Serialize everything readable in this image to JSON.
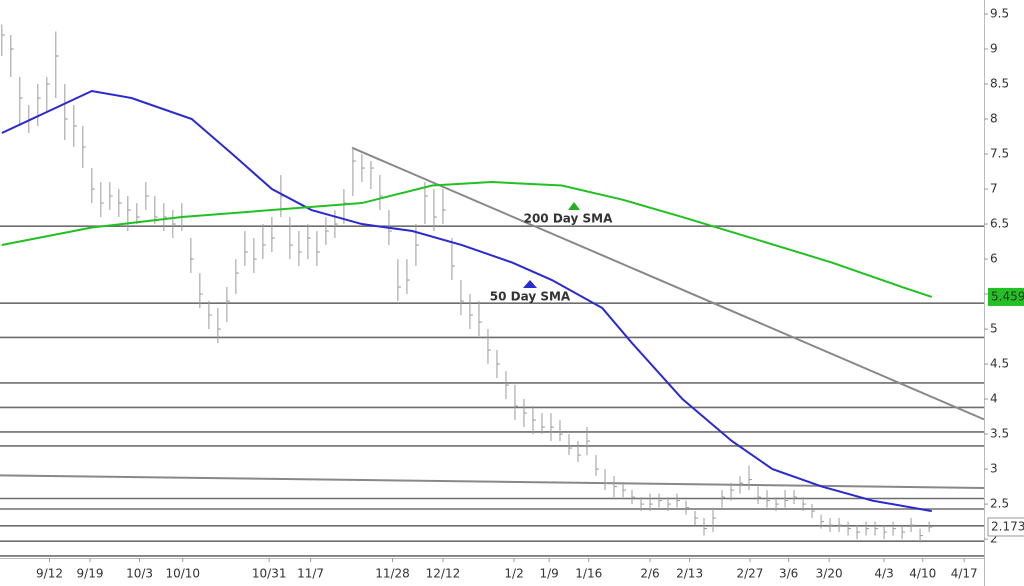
{
  "chart_data": {
    "type": "ohlc",
    "bar_color": "#9a9a9a",
    "bars": [
      [
        9.35,
        8.9,
        9.2
      ],
      [
        9.2,
        8.6,
        9.0
      ],
      [
        8.6,
        7.9,
        8.3
      ],
      [
        8.2,
        7.8,
        8.0
      ],
      [
        8.5,
        7.9,
        8.3
      ],
      [
        8.6,
        8.1,
        8.5
      ],
      [
        9.25,
        8.3,
        8.9
      ],
      [
        8.5,
        7.7,
        8.0
      ],
      [
        8.2,
        7.6,
        7.9
      ],
      [
        7.9,
        7.3,
        7.6
      ],
      [
        7.3,
        6.8,
        7.0
      ],
      [
        7.1,
        6.6,
        6.8
      ],
      [
        7.1,
        6.7,
        6.9
      ],
      [
        7.0,
        6.6,
        6.8
      ],
      [
        6.9,
        6.4,
        6.7
      ],
      [
        6.8,
        6.5,
        6.6
      ],
      [
        7.1,
        6.7,
        6.9
      ],
      [
        6.9,
        6.5,
        6.6
      ],
      [
        6.8,
        6.4,
        6.6
      ],
      [
        6.7,
        6.3,
        6.5
      ],
      [
        6.8,
        6.4,
        6.6
      ],
      [
        6.3,
        5.8,
        6.0
      ],
      [
        5.8,
        5.3,
        5.5
      ],
      [
        5.4,
        5.0,
        5.2
      ],
      [
        5.3,
        4.8,
        5.0
      ],
      [
        5.6,
        5.1,
        5.4
      ],
      [
        6.0,
        5.5,
        5.8
      ],
      [
        6.4,
        5.9,
        6.1
      ],
      [
        6.3,
        5.8,
        6.0
      ],
      [
        6.5,
        6.0,
        6.2
      ],
      [
        6.6,
        6.1,
        6.3
      ],
      [
        7.2,
        6.6,
        6.9
      ],
      [
        6.6,
        6.0,
        6.2
      ],
      [
        6.4,
        5.9,
        6.1
      ],
      [
        6.5,
        6.0,
        6.3
      ],
      [
        6.4,
        5.9,
        6.1
      ],
      [
        6.6,
        6.2,
        6.4
      ],
      [
        6.7,
        6.3,
        6.5
      ],
      [
        7.0,
        6.5,
        6.8
      ],
      [
        7.6,
        6.9,
        7.4
      ],
      [
        7.5,
        7.1,
        7.3
      ],
      [
        7.4,
        7.0,
        7.3
      ],
      [
        7.2,
        6.7,
        6.9
      ],
      [
        6.7,
        6.2,
        6.4
      ],
      [
        6.0,
        5.4,
        5.6
      ],
      [
        6.0,
        5.5,
        5.7
      ],
      [
        6.5,
        5.9,
        6.2
      ],
      [
        7.1,
        6.5,
        6.9
      ],
      [
        7.0,
        6.4,
        6.6
      ],
      [
        7.0,
        6.5,
        6.7
      ],
      [
        6.3,
        5.7,
        5.9
      ],
      [
        5.7,
        5.2,
        5.4
      ],
      [
        5.5,
        5.0,
        5.2
      ],
      [
        5.4,
        4.9,
        5.1
      ],
      [
        5.0,
        4.5,
        4.7
      ],
      [
        4.7,
        4.3,
        4.5
      ],
      [
        4.4,
        4.0,
        4.2
      ],
      [
        4.2,
        3.7,
        3.9
      ],
      [
        4.0,
        3.6,
        3.8
      ],
      [
        3.9,
        3.5,
        3.7
      ],
      [
        3.8,
        3.5,
        3.6
      ],
      [
        3.8,
        3.4,
        3.6
      ],
      [
        3.7,
        3.4,
        3.5
      ],
      [
        3.5,
        3.2,
        3.3
      ],
      [
        3.4,
        3.1,
        3.2
      ],
      [
        3.6,
        3.2,
        3.4
      ],
      [
        3.2,
        2.9,
        3.0
      ],
      [
        3.0,
        2.7,
        2.8
      ],
      [
        2.9,
        2.6,
        2.75
      ],
      [
        2.8,
        2.6,
        2.7
      ],
      [
        2.7,
        2.5,
        2.6
      ],
      [
        2.6,
        2.4,
        2.5
      ],
      [
        2.65,
        2.4,
        2.5
      ],
      [
        2.65,
        2.45,
        2.55
      ],
      [
        2.6,
        2.4,
        2.5
      ],
      [
        2.65,
        2.45,
        2.55
      ],
      [
        2.55,
        2.35,
        2.45
      ],
      [
        2.4,
        2.2,
        2.3
      ],
      [
        2.3,
        2.05,
        2.15
      ],
      [
        2.45,
        2.1,
        2.3
      ],
      [
        2.7,
        2.45,
        2.6
      ],
      [
        2.8,
        2.55,
        2.7
      ],
      [
        2.9,
        2.65,
        2.8
      ],
      [
        3.05,
        2.7,
        2.85
      ],
      [
        2.75,
        2.5,
        2.6
      ],
      [
        2.7,
        2.45,
        2.55
      ],
      [
        2.6,
        2.4,
        2.5
      ],
      [
        2.7,
        2.45,
        2.55
      ],
      [
        2.7,
        2.5,
        2.6
      ],
      [
        2.6,
        2.4,
        2.5
      ],
      [
        2.5,
        2.3,
        2.4
      ],
      [
        2.35,
        2.15,
        2.25
      ],
      [
        2.3,
        2.1,
        2.2
      ],
      [
        2.3,
        2.1,
        2.2
      ],
      [
        2.25,
        2.05,
        2.15
      ],
      [
        2.2,
        2.0,
        2.1
      ],
      [
        2.25,
        2.05,
        2.15
      ],
      [
        2.25,
        2.05,
        2.15
      ],
      [
        2.2,
        2.0,
        2.1
      ],
      [
        2.25,
        2.05,
        2.15
      ],
      [
        2.2,
        2.0,
        2.1
      ],
      [
        2.3,
        2.1,
        2.2
      ],
      [
        2.15,
        1.95,
        2.05
      ],
      [
        2.25,
        2.1,
        2.173
      ]
    ],
    "sma": [
      {
        "color": "#2a2ad0",
        "x": [
          0,
          10,
          14.4,
          21.1,
          25.6,
          30,
          34.4,
          40,
          45.6,
          51.1,
          56.7,
          61.1,
          66.7,
          70,
          75.6,
          81.1,
          85.6,
          91.1,
          96.7,
          103.3
        ],
        "values": [
          7.8,
          8.4,
          8.3,
          8.0,
          7.5,
          7.0,
          6.7,
          6.5,
          6.4,
          6.2,
          5.95,
          5.7,
          5.3,
          4.8,
          4.0,
          3.4,
          3.0,
          2.75,
          2.55,
          2.4
        ]
      },
      {
        "color": "#22c022",
        "x": [
          0,
          10,
          20,
          30,
          40,
          47.8,
          54.4,
          62.2,
          68.9,
          75.6,
          83.3,
          92.2,
          100,
          103.3
        ],
        "values": [
          6.2,
          6.45,
          6.6,
          6.7,
          6.8,
          7.05,
          7.1,
          7.05,
          6.85,
          6.6,
          6.3,
          5.95,
          5.6,
          5.459
        ]
      }
    ],
    "annotations": [
      {
        "text": "200 Day SMA",
        "color": "#22b022"
      },
      {
        "text": "50 Day SMA",
        "color": "#2a2ad0"
      }
    ],
    "levels": [
      6.47,
      5.37,
      4.88,
      4.23,
      3.88,
      3.53,
      3.33,
      2.58,
      2.43,
      2.19,
      1.97,
      1.76
    ],
    "trendlines": [
      {
        "x": [
          38.9,
          109.1
        ],
        "values": [
          7.59,
          3.71
        ]
      },
      {
        "x": [
          -0.2,
          109.1
        ],
        "values": [
          2.91,
          2.73
        ]
      }
    ],
    "xlim": [
      -0.2,
      109.1
    ],
    "xticks": [
      {
        "value": 5.3,
        "label": "9/12"
      },
      {
        "value": 9.8,
        "label": "9/19"
      },
      {
        "value": 15.3,
        "label": "10/3"
      },
      {
        "value": 20.1,
        "label": "10/10"
      },
      {
        "value": 29.7,
        "label": "10/31"
      },
      {
        "value": 34.3,
        "label": "11/7"
      },
      {
        "value": 43.4,
        "label": "11/28"
      },
      {
        "value": 49,
        "label": "12/12"
      },
      {
        "value": 56.9,
        "label": "1/2"
      },
      {
        "value": 60.8,
        "label": "1/9"
      },
      {
        "value": 65.2,
        "label": "1/16"
      },
      {
        "value": 72,
        "label": "2/6"
      },
      {
        "value": 76.4,
        "label": "2/13"
      },
      {
        "value": 83.1,
        "label": "2/27"
      },
      {
        "value": 87.4,
        "label": "3/6"
      },
      {
        "value": 91.9,
        "label": "3/20"
      },
      {
        "value": 98,
        "label": "4/3"
      },
      {
        "value": 102.3,
        "label": "4/10"
      },
      {
        "value": 106.9,
        "label": "4/17"
      }
    ],
    "ylim": [
      1.73,
      9.7
    ],
    "yticks": [
      2,
      2.5,
      3,
      3.5,
      4,
      4.5,
      5,
      5.5,
      6,
      6.5,
      7,
      7.5,
      8,
      8.5,
      9,
      9.5
    ]
  }
}
